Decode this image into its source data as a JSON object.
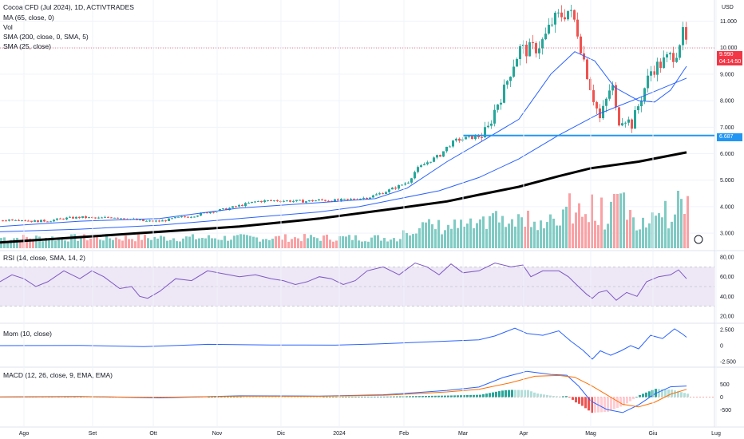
{
  "legend": {
    "title": "Cocoa CFD (Jul 2024), 1D, ACTIVTRADES",
    "ind1": "MA (65, close, 0)",
    "ind2": "Vol",
    "ind3": "SMA (200, close, 0, SMA, 5)",
    "ind4": "SMA (25, close)",
    "rsi": "RSI (14, close, SMA, 14, 2)",
    "mom": "Mom (10, close)",
    "macd": "MACD (12, 26, close, 9, EMA, EMA)"
  },
  "currency": "USD",
  "price_tag": {
    "value": "9.990",
    "countdown": "04:14:50",
    "color": "#f23645"
  },
  "hline_tag": {
    "value": "6.687",
    "color": "#2196f3"
  },
  "colors": {
    "up": "#26a69a",
    "down": "#ef5350",
    "ma65": "#2962ff",
    "sma200": "#000000",
    "sma25": "#2962ff",
    "rsi": "#7e57c2",
    "rsi_band": "#ede7f6",
    "mom": "#2962ff",
    "macd": "#2962ff",
    "signal": "#ff6d00",
    "hline": "#2196f3"
  },
  "chart_data": [
    {
      "type": "candlestick",
      "title": "Cocoa CFD (Jul 2024), 1D, ACTIVTRADES",
      "x_ticks": [
        "Ago",
        "Set",
        "Ott",
        "Nov",
        "Dic",
        "2024",
        "Feb",
        "Mar",
        "Apr",
        "Mag",
        "Giu",
        "Lug"
      ],
      "y_ticks": [
        "11.000",
        "10.000",
        "9.000",
        "8.000",
        "7.000",
        "6.000",
        "5.000",
        "4.000",
        "3.000"
      ],
      "ylim": [
        2400,
        11800
      ],
      "horizontal_line": 6687,
      "last_price": 9990,
      "close_path": [
        [
          0,
          3480
        ],
        [
          20,
          3530
        ],
        [
          40,
          3450
        ],
        [
          60,
          3470
        ],
        [
          80,
          3560
        ],
        [
          100,
          3600
        ],
        [
          120,
          3560
        ],
        [
          140,
          3610
        ],
        [
          160,
          3540
        ],
        [
          180,
          3450
        ],
        [
          200,
          3450
        ],
        [
          220,
          3580
        ],
        [
          240,
          3650
        ],
        [
          260,
          3800
        ],
        [
          280,
          3900
        ],
        [
          300,
          4050
        ],
        [
          320,
          4200
        ],
        [
          340,
          4230
        ],
        [
          360,
          4220
        ],
        [
          380,
          4200
        ],
        [
          400,
          4250
        ],
        [
          420,
          4230
        ],
        [
          440,
          4280
        ],
        [
          460,
          4350
        ],
        [
          480,
          4550
        ],
        [
          500,
          4800
        ],
        [
          510,
          4950
        ],
        [
          520,
          5400
        ],
        [
          535,
          5700
        ],
        [
          550,
          5950
        ],
        [
          560,
          6300
        ],
        [
          570,
          6500
        ],
        [
          585,
          6600
        ],
        [
          600,
          6650
        ],
        [
          610,
          6950
        ],
        [
          620,
          7800
        ],
        [
          630,
          8400
        ],
        [
          640,
          9300
        ],
        [
          650,
          9950
        ],
        [
          660,
          9900
        ],
        [
          670,
          10000
        ],
        [
          680,
          10300
        ],
        [
          690,
          10950
        ],
        [
          700,
          11200
        ],
        [
          710,
          11400
        ],
        [
          720,
          10900
        ],
        [
          728,
          9800
        ],
        [
          735,
          8900
        ],
        [
          742,
          8100
        ],
        [
          750,
          7300
        ],
        [
          758,
          8000
        ],
        [
          765,
          8700
        ],
        [
          772,
          7200
        ],
        [
          780,
          7400
        ],
        [
          790,
          7100
        ],
        [
          798,
          7800
        ],
        [
          805,
          8400
        ],
        [
          815,
          9200
        ],
        [
          825,
          9350
        ],
        [
          835,
          9600
        ],
        [
          845,
          9800
        ],
        [
          853,
          10550
        ],
        [
          860,
          9990
        ]
      ],
      "ma65_path": [
        [
          0,
          3050
        ],
        [
          100,
          3150
        ],
        [
          200,
          3300
        ],
        [
          300,
          3550
        ],
        [
          400,
          3800
        ],
        [
          450,
          4000
        ],
        [
          500,
          4300
        ],
        [
          550,
          4600
        ],
        [
          600,
          5100
        ],
        [
          650,
          5800
        ],
        [
          700,
          6700
        ],
        [
          750,
          7500
        ],
        [
          800,
          8100
        ],
        [
          860,
          8850
        ]
      ],
      "sma25_path": [
        [
          0,
          3250
        ],
        [
          100,
          3450
        ],
        [
          200,
          3550
        ],
        [
          300,
          3950
        ],
        [
          400,
          4150
        ],
        [
          470,
          4300
        ],
        [
          510,
          4700
        ],
        [
          560,
          5700
        ],
        [
          600,
          6400
        ],
        [
          650,
          7300
        ],
        [
          690,
          9000
        ],
        [
          720,
          9850
        ],
        [
          745,
          9500
        ],
        [
          770,
          8500
        ],
        [
          800,
          8000
        ],
        [
          820,
          7950
        ],
        [
          840,
          8400
        ],
        [
          860,
          9300
        ]
      ],
      "sma200_path": [
        [
          0,
          2650
        ],
        [
          100,
          2850
        ],
        [
          200,
          3050
        ],
        [
          300,
          3250
        ],
        [
          400,
          3550
        ],
        [
          500,
          3950
        ],
        [
          560,
          4200
        ],
        [
          600,
          4450
        ],
        [
          650,
          4750
        ],
        [
          700,
          5150
        ],
        [
          740,
          5450
        ],
        [
          800,
          5700
        ],
        [
          860,
          6050
        ]
      ]
    },
    {
      "type": "bar",
      "title": "Vol",
      "note": "volume histogram, relative heights",
      "spikes": [
        [
          710,
          0.65
        ],
        [
          740,
          0.95
        ],
        [
          770,
          0.85
        ],
        [
          805,
          0.75
        ],
        [
          850,
          0.9
        ]
      ]
    },
    {
      "type": "line",
      "title": "RSI (14, close, SMA, 14, 2)",
      "y_ticks": [
        "80,00",
        "60,00",
        "40,00",
        "20,00"
      ],
      "ylim": [
        15,
        85
      ],
      "band": [
        30,
        70
      ],
      "path": [
        [
          0,
          55
        ],
        [
          15,
          62
        ],
        [
          30,
          58
        ],
        [
          45,
          50
        ],
        [
          60,
          55
        ],
        [
          80,
          66
        ],
        [
          100,
          58
        ],
        [
          115,
          66
        ],
        [
          130,
          60
        ],
        [
          150,
          48
        ],
        [
          165,
          50
        ],
        [
          175,
          40
        ],
        [
          185,
          38
        ],
        [
          200,
          45
        ],
        [
          220,
          58
        ],
        [
          240,
          56
        ],
        [
          260,
          66
        ],
        [
          280,
          63
        ],
        [
          300,
          60
        ],
        [
          320,
          62
        ],
        [
          340,
          58
        ],
        [
          355,
          56
        ],
        [
          370,
          52
        ],
        [
          385,
          55
        ],
        [
          400,
          60
        ],
        [
          415,
          58
        ],
        [
          430,
          52
        ],
        [
          445,
          56
        ],
        [
          460,
          66
        ],
        [
          480,
          70
        ],
        [
          500,
          62
        ],
        [
          520,
          74
        ],
        [
          535,
          70
        ],
        [
          550,
          62
        ],
        [
          565,
          73
        ],
        [
          580,
          64
        ],
        [
          600,
          66
        ],
        [
          620,
          74
        ],
        [
          640,
          70
        ],
        [
          655,
          72
        ],
        [
          665,
          60
        ],
        [
          680,
          66
        ],
        [
          700,
          66
        ],
        [
          712,
          60
        ],
        [
          722,
          52
        ],
        [
          735,
          42
        ],
        [
          742,
          38
        ],
        [
          750,
          44
        ],
        [
          760,
          46
        ],
        [
          772,
          36
        ],
        [
          785,
          44
        ],
        [
          798,
          40
        ],
        [
          810,
          55
        ],
        [
          825,
          60
        ],
        [
          840,
          62
        ],
        [
          850,
          67
        ],
        [
          860,
          58
        ]
      ]
    },
    {
      "type": "line",
      "title": "Mom (10, close)",
      "y_ticks": [
        "2.500",
        "0",
        "-2.500"
      ],
      "ylim": [
        -3100,
        3100
      ],
      "path": [
        [
          0,
          0
        ],
        [
          100,
          30
        ],
        [
          180,
          -150
        ],
        [
          260,
          200
        ],
        [
          340,
          100
        ],
        [
          420,
          80
        ],
        [
          470,
          250
        ],
        [
          520,
          500
        ],
        [
          560,
          700
        ],
        [
          600,
          900
        ],
        [
          620,
          1500
        ],
        [
          645,
          2700
        ],
        [
          660,
          1900
        ],
        [
          680,
          1600
        ],
        [
          700,
          2300
        ],
        [
          715,
          700
        ],
        [
          730,
          -700
        ],
        [
          742,
          -2100
        ],
        [
          752,
          -800
        ],
        [
          765,
          -1500
        ],
        [
          778,
          -800
        ],
        [
          790,
          0
        ],
        [
          800,
          -500
        ],
        [
          815,
          1600
        ],
        [
          830,
          1100
        ],
        [
          845,
          2600
        ],
        [
          855,
          1800
        ],
        [
          860,
          1300
        ]
      ]
    },
    {
      "type": "line",
      "title": "MACD (12, 26, close, 9, EMA, EMA)",
      "y_ticks": [
        "500",
        "0",
        "-500"
      ],
      "ylim": [
        -1100,
        1100
      ],
      "macd_path": [
        [
          0,
          10
        ],
        [
          100,
          25
        ],
        [
          200,
          -30
        ],
        [
          300,
          50
        ],
        [
          400,
          40
        ],
        [
          480,
          90
        ],
        [
          520,
          170
        ],
        [
          560,
          260
        ],
        [
          600,
          390
        ],
        [
          630,
          760
        ],
        [
          660,
          1000
        ],
        [
          690,
          880
        ],
        [
          710,
          850
        ],
        [
          725,
          420
        ],
        [
          740,
          -150
        ],
        [
          760,
          -480
        ],
        [
          780,
          -600
        ],
        [
          800,
          -300
        ],
        [
          820,
          120
        ],
        [
          840,
          400
        ],
        [
          860,
          430
        ]
      ],
      "signal_path": [
        [
          0,
          0
        ],
        [
          100,
          15
        ],
        [
          200,
          -10
        ],
        [
          300,
          35
        ],
        [
          400,
          30
        ],
        [
          480,
          70
        ],
        [
          520,
          130
        ],
        [
          560,
          200
        ],
        [
          600,
          300
        ],
        [
          640,
          560
        ],
        [
          670,
          810
        ],
        [
          700,
          840
        ],
        [
          720,
          770
        ],
        [
          740,
          460
        ],
        [
          760,
          90
        ],
        [
          780,
          -280
        ],
        [
          800,
          -380
        ],
        [
          820,
          -200
        ],
        [
          840,
          110
        ],
        [
          860,
          300
        ]
      ]
    }
  ],
  "footer": {
    "note": "chart data-driven"
  }
}
